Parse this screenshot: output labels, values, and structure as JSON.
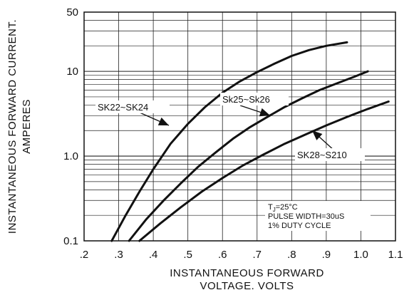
{
  "chart_data": {
    "type": "line",
    "title": "",
    "xlabel_lines": [
      "INSTANTANEOUS FORWARD",
      "VOLTAGE. VOLTS"
    ],
    "ylabel_lines": [
      "INSTANTANEOUS FORWARD CURRENT.",
      "AMPERES"
    ],
    "xlim": [
      0.2,
      1.1
    ],
    "ylim": [
      0.1,
      50
    ],
    "yscale": "log",
    "grid": true,
    "x_ticks": [
      0.2,
      0.3,
      0.4,
      0.5,
      0.6,
      0.7,
      0.8,
      0.9,
      1.0,
      1.1
    ],
    "x_tick_labels": [
      ".2",
      ".3",
      ".4",
      ".5",
      ".6",
      ".7",
      ".8",
      ".9",
      "1.0",
      "1.1"
    ],
    "y_ticks": [
      0.1,
      1.0,
      10,
      50
    ],
    "y_tick_labels": [
      "0.1",
      "1.0",
      "10",
      "50"
    ],
    "series": [
      {
        "name": "SK22~SK24",
        "x": [
          0.28,
          0.32,
          0.36,
          0.4,
          0.45,
          0.5,
          0.55,
          0.6,
          0.65,
          0.7,
          0.75,
          0.8,
          0.85,
          0.9,
          0.96
        ],
        "y": [
          0.1,
          0.2,
          0.38,
          0.7,
          1.4,
          2.4,
          3.8,
          5.6,
          7.6,
          9.8,
          12.3,
          15.2,
          17.8,
          20.0,
          22.0
        ]
      },
      {
        "name": "Sk25~Sk26",
        "x": [
          0.33,
          0.38,
          0.43,
          0.48,
          0.53,
          0.58,
          0.63,
          0.68,
          0.73,
          0.78,
          0.83,
          0.88,
          0.93,
          0.98,
          1.02
        ],
        "y": [
          0.1,
          0.18,
          0.3,
          0.48,
          0.75,
          1.1,
          1.6,
          2.2,
          2.9,
          3.8,
          4.8,
          6.0,
          7.2,
          8.6,
          10.0
        ]
      },
      {
        "name": "SK28~S210",
        "x": [
          0.36,
          0.42,
          0.48,
          0.54,
          0.6,
          0.66,
          0.72,
          0.78,
          0.84,
          0.9,
          0.96,
          1.02,
          1.08
        ],
        "y": [
          0.1,
          0.16,
          0.25,
          0.38,
          0.55,
          0.78,
          1.05,
          1.4,
          1.8,
          2.3,
          2.9,
          3.6,
          4.4
        ]
      }
    ],
    "series_label_text": [
      "SK22~SK24",
      "Sk25~Sk26",
      "SK28~S210"
    ],
    "annotations": {
      "lines": [
        "T",
        "=25°C",
        "PULSE WIDTH=30uS",
        "1% DUTY CYCLE"
      ],
      "subscript": "J"
    }
  }
}
